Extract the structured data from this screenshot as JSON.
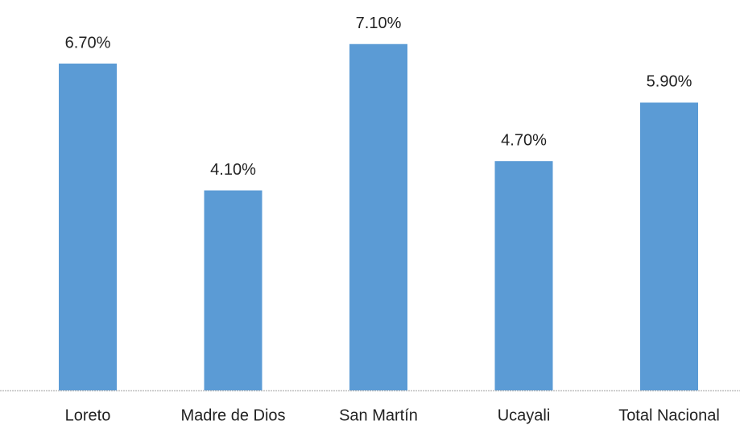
{
  "chart_data": {
    "type": "bar",
    "categories": [
      "Loreto",
      "Madre de Dios",
      "San Martín",
      "Ucayali",
      "Total Nacional"
    ],
    "values": [
      6.7,
      4.1,
      7.1,
      4.7,
      5.9
    ],
    "value_labels": [
      "6.70%",
      "4.10%",
      "7.10%",
      "4.70%",
      "5.90%"
    ],
    "color": "#5b9bd5"
  }
}
